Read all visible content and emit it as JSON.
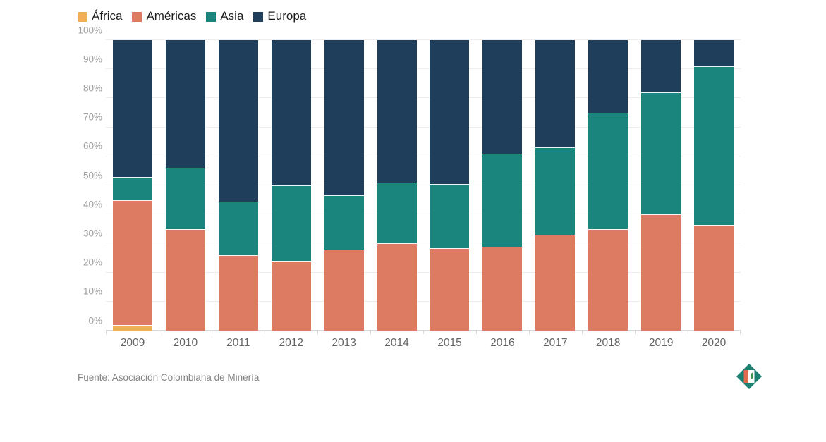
{
  "legend": {
    "position": "top-left"
  },
  "chart_data": {
    "type": "bar",
    "stacked": true,
    "percent": true,
    "title": "",
    "xlabel": "",
    "ylabel": "",
    "ylim": [
      0,
      100
    ],
    "yticks": [
      "0%",
      "10%",
      "20%",
      "30%",
      "40%",
      "50%",
      "60%",
      "70%",
      "80%",
      "90%",
      "100%"
    ],
    "grid": true,
    "legend_position": "top-left",
    "categories": [
      "2009",
      "2010",
      "2011",
      "2012",
      "2013",
      "2014",
      "2015",
      "2016",
      "2017",
      "2018",
      "2019",
      "2020"
    ],
    "series": [
      {
        "name": "África",
        "color": "#f0b055",
        "values": [
          2,
          0,
          0,
          0,
          0,
          0,
          0,
          0,
          0,
          0,
          0,
          0
        ]
      },
      {
        "name": "Américas",
        "color": "#dc7a62",
        "values": [
          43,
          35,
          26,
          24,
          28,
          30,
          28.5,
          29,
          33,
          35,
          40,
          36.5
        ]
      },
      {
        "name": "Asia",
        "color": "#1a857d",
        "values": [
          8,
          21,
          18.5,
          26,
          18.5,
          21,
          22,
          32,
          30,
          40,
          42,
          54.5
        ]
      },
      {
        "name": "Europa",
        "color": "#1e3e5c",
        "values": [
          47,
          44,
          55.5,
          50,
          53.5,
          49,
          49.5,
          39,
          37,
          25,
          18,
          9
        ]
      }
    ]
  },
  "colors": {
    "gridline": "#ededed",
    "baseline": "#d9d9d9",
    "ytick_text": "#9d9d9d",
    "xtick_text": "#646464",
    "legend_text": "#1d1d20",
    "source_text": "#848484",
    "logo_teal": "#1b7f72",
    "logo_coral": "#e06a52",
    "logo_green": "#3b8f4e"
  },
  "footer": {
    "source": "Fuente: Asociación Colombiana de Minería",
    "logo": "acm-diamond-logo"
  }
}
